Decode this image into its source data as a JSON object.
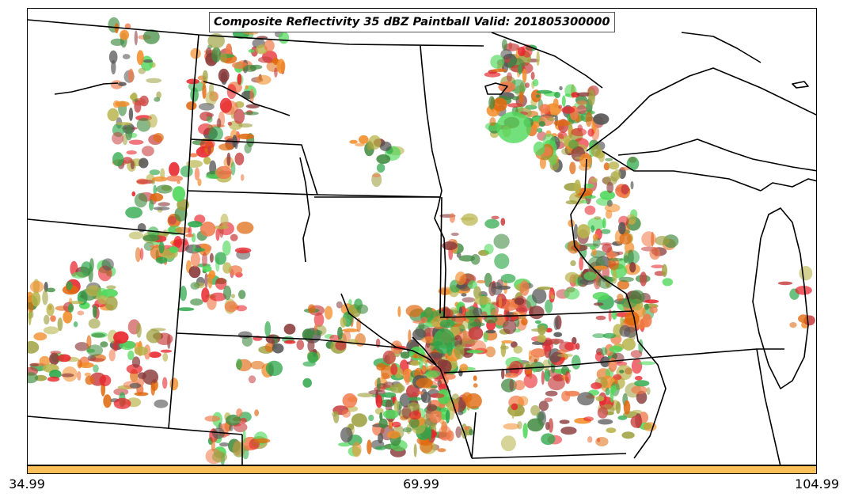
{
  "title": "Composite Reflectivity 35 dBZ Paintball Valid: 201805300000",
  "colorbar": {
    "color": "#fbbf5a",
    "ticks": [
      "34.99",
      "69.99",
      "104.99"
    ]
  },
  "paint_colors": [
    "#e8232a",
    "#f28d2a",
    "#b8b34a",
    "#2ea84a",
    "#4fd85a",
    "#555555",
    "#8a3a3a",
    "#e06a10",
    "#9ea040",
    "#3f8a3f",
    "#f07a4a",
    "#c84040"
  ]
}
